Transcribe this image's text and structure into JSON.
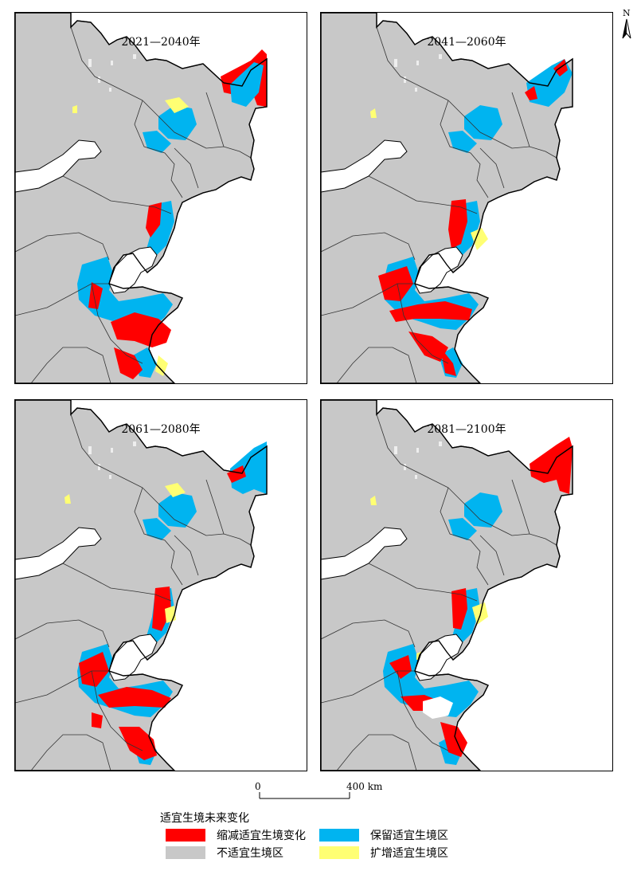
{
  "panels": [
    {
      "id": "p1",
      "title": "2021—2040年"
    },
    {
      "id": "p2",
      "title": "2041—2060年"
    },
    {
      "id": "p3",
      "title": "2061—2080年"
    },
    {
      "id": "p4",
      "title": "2081—2100年"
    }
  ],
  "north_arrow": {
    "label": "N"
  },
  "scale_bar": {
    "start_label": "0",
    "end_label": "400 km"
  },
  "legend": {
    "title": "适宜生境未来变化",
    "items": [
      {
        "key": "reduced",
        "label": "缩减适宜生境变化",
        "color": "#ff0000"
      },
      {
        "key": "retained",
        "label": "保留适宜生境区",
        "color": "#00b4f0"
      },
      {
        "key": "unsuitable",
        "label": "不适宜生境区",
        "color": "#c8c8c8"
      },
      {
        "key": "expanded",
        "label": "扩增适宜生境区",
        "color": "#ffff73"
      }
    ]
  },
  "colors": {
    "land": "#c8c8c8",
    "sea": "#ffffff",
    "border": "#000000"
  }
}
